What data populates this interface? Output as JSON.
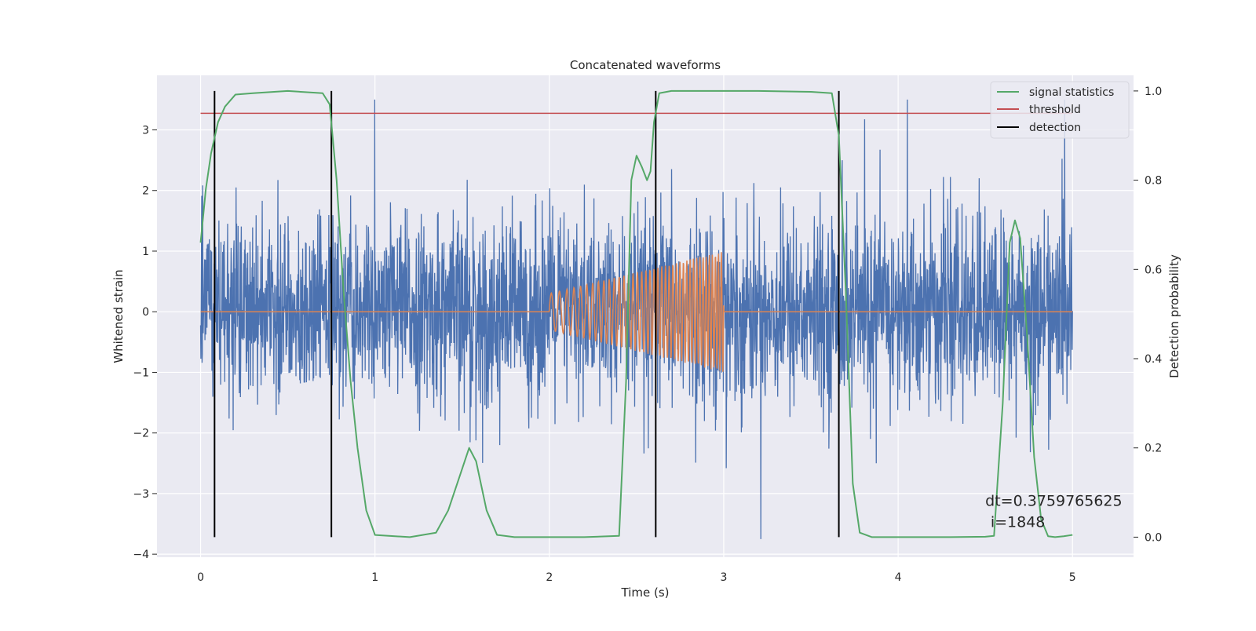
{
  "chart_data": {
    "type": "line",
    "title": "Concatenated waveforms",
    "xlabel": "Time (s)",
    "ylabel_left": "Whitened strain",
    "ylabel_right": "Detection probability",
    "xlim": [
      -0.25,
      5.35
    ],
    "ylim_left": [
      -4.05,
      3.9
    ],
    "ylim_right": [
      -0.045,
      1.035
    ],
    "x_ticks": [
      0,
      1,
      2,
      3,
      4,
      5
    ],
    "y_ticks_left": [
      -4,
      -3,
      -2,
      -1,
      0,
      1,
      2,
      3
    ],
    "y_ticks_right": [
      0.0,
      0.2,
      0.4,
      0.6,
      0.8,
      1.0
    ],
    "grid": true,
    "legend_position": "top-right",
    "legend": [
      {
        "label": "signal statistics",
        "color": "#55a868"
      },
      {
        "label": "threshold",
        "color": "#c44e52"
      },
      {
        "label": "detection",
        "color": "#000000"
      }
    ],
    "series": [
      {
        "name": "whitened strain",
        "axis": "left",
        "kind": "noise",
        "color": "#4c72b0",
        "x_range": [
          0,
          5
        ],
        "sigma": 0.75,
        "min": -3.75,
        "max": 3.5
      },
      {
        "name": "injected waveform",
        "axis": "left",
        "kind": "chirp",
        "color": "#dd8452",
        "x_range": [
          0,
          5
        ],
        "chirp_start": 2.0,
        "chirp_end": 3.0,
        "amp_start": 0.3,
        "amp_end": 1.0,
        "freq_start": 20,
        "freq_end": 60
      },
      {
        "name": "signal statistics",
        "axis": "right",
        "color": "#55a868",
        "x": [
          0.0,
          0.03,
          0.06,
          0.1,
          0.14,
          0.2,
          0.3,
          0.5,
          0.7,
          0.74,
          0.78,
          0.82,
          0.86,
          0.9,
          0.95,
          1.0,
          1.2,
          1.35,
          1.42,
          1.48,
          1.54,
          1.58,
          1.64,
          1.7,
          1.8,
          2.0,
          2.2,
          2.4,
          2.44,
          2.47,
          2.5,
          2.53,
          2.56,
          2.58,
          2.6,
          2.63,
          2.7,
          2.9,
          3.2,
          3.5,
          3.62,
          3.66,
          3.7,
          3.74,
          3.78,
          3.85,
          4.0,
          4.3,
          4.5,
          4.55,
          4.6,
          4.64,
          4.67,
          4.7,
          4.74,
          4.78,
          4.82,
          4.86,
          4.9,
          4.95,
          5.0
        ],
        "values": [
          0.66,
          0.78,
          0.86,
          0.93,
          0.965,
          0.992,
          0.995,
          1.0,
          0.995,
          0.97,
          0.8,
          0.55,
          0.35,
          0.2,
          0.06,
          0.005,
          0.0,
          0.01,
          0.06,
          0.13,
          0.2,
          0.17,
          0.06,
          0.005,
          0.0,
          0.0,
          0.0,
          0.003,
          0.35,
          0.8,
          0.855,
          0.83,
          0.8,
          0.82,
          0.93,
          0.995,
          1.0,
          1.0,
          1.0,
          0.998,
          0.995,
          0.9,
          0.55,
          0.12,
          0.01,
          0.0,
          0.0,
          0.0,
          0.001,
          0.003,
          0.3,
          0.66,
          0.71,
          0.67,
          0.45,
          0.18,
          0.04,
          0.002,
          0.0,
          0.002,
          0.005
        ]
      }
    ],
    "threshold": {
      "label": "threshold",
      "value": 0.95,
      "x_range": [
        0,
        5
      ],
      "axis": "right",
      "color": "#c44e52"
    },
    "detections": {
      "label": "detection",
      "x": [
        0.08,
        0.75,
        2.61,
        3.66
      ],
      "axis": "right",
      "range": [
        0.0,
        1.0
      ],
      "color": "#000000"
    },
    "annotations": [
      {
        "text": "dt=0.3759765625",
        "x": 4.5,
        "y": -3.2
      },
      {
        "text": "i=1848",
        "x": 4.53,
        "y": -3.55
      }
    ]
  }
}
